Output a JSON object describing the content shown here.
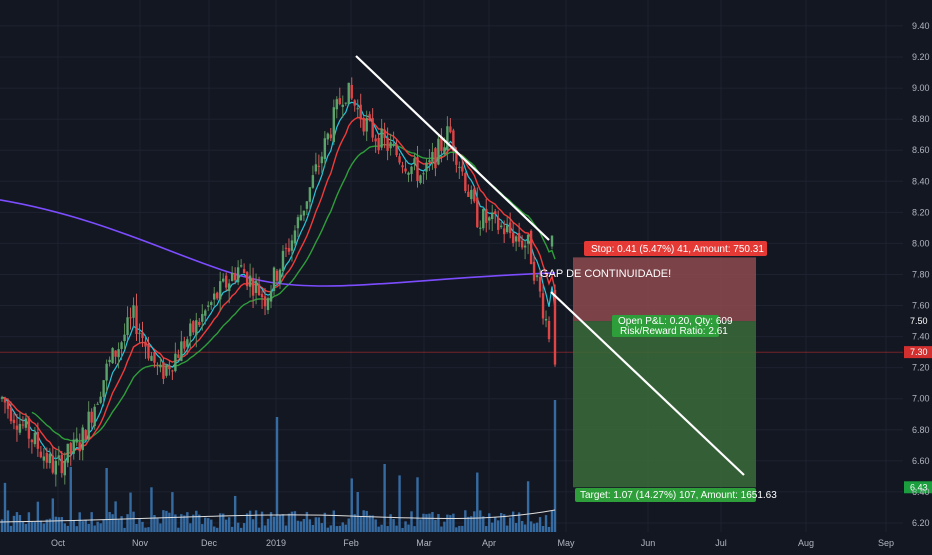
{
  "chart_data": {
    "type": "candlestick",
    "x_ticks": [
      "Oct",
      "Nov",
      "Dec",
      "2019",
      "Feb",
      "Mar",
      "Apr",
      "May",
      "Jun",
      "Jul",
      "Aug",
      "Sep"
    ],
    "y_ticks": [
      "9.40",
      "9.20",
      "9.00",
      "8.80",
      "8.60",
      "8.40",
      "8.20",
      "8.00",
      "7.80",
      "7.60",
      "7.50",
      "7.40",
      "7.30",
      "7.20",
      "7.00",
      "6.80",
      "6.60",
      "6.43",
      "6.40",
      "6.20"
    ],
    "ylim": [
      6.1,
      9.5
    ],
    "price_markers": [
      {
        "value": "7.91",
        "color": "#d32f2f"
      },
      {
        "value": "7.50",
        "color": "#131722"
      },
      {
        "value": "7.30",
        "color": "#d32f2f"
      },
      {
        "value": "6.43",
        "color": "#1b9e3e"
      }
    ],
    "annotation": "GAP DE CONTINUIDADE!",
    "position": {
      "stop_label": "Stop: 0.41 (5.47%) 41, Amount: 750.31",
      "open_label_1": "Open P&L: 0.20, Qty: 609",
      "open_label_2": "Risk/Reward Ratio: 2.61",
      "target_label": "Target: 1.07 (14.27%) 107, Amount: 1651.63",
      "entry": 7.5,
      "stop": 7.91,
      "target": 6.43
    },
    "candles_summary": [
      [
        6.95,
        7.05
      ],
      [
        6.75,
        6.8
      ],
      [
        6.55,
        6.55
      ],
      [
        6.7,
        6.75
      ],
      [
        7.1,
        7.3
      ],
      [
        7.45,
        7.6
      ],
      [
        7.2,
        7.1
      ],
      [
        7.4,
        7.35
      ],
      [
        7.55,
        7.7
      ],
      [
        7.75,
        7.95
      ],
      [
        7.6,
        7.7
      ],
      [
        7.85,
        8.2
      ],
      [
        8.4,
        8.6
      ],
      [
        8.8,
        9.2
      ],
      [
        8.7,
        8.75
      ],
      [
        8.55,
        8.6
      ],
      [
        8.4,
        8.45
      ],
      [
        8.7,
        8.75
      ],
      [
        8.1,
        8.25
      ],
      [
        8.05,
        8.15
      ],
      [
        7.92,
        8.05
      ],
      [
        7.3,
        7.22
      ]
    ],
    "trendline_label": "",
    "colors": {
      "up": "#26a69a",
      "down": "#ef5350",
      "ema_fast": "#26c6da",
      "ema_mid": "#ef3b3b",
      "ema_slow": "#2e9e3a",
      "sma_long": "#7c4dff",
      "volume": "#3d7ab8",
      "stop_zone": "#8e4a4f",
      "target_zone": "#3b6b3a"
    }
  }
}
